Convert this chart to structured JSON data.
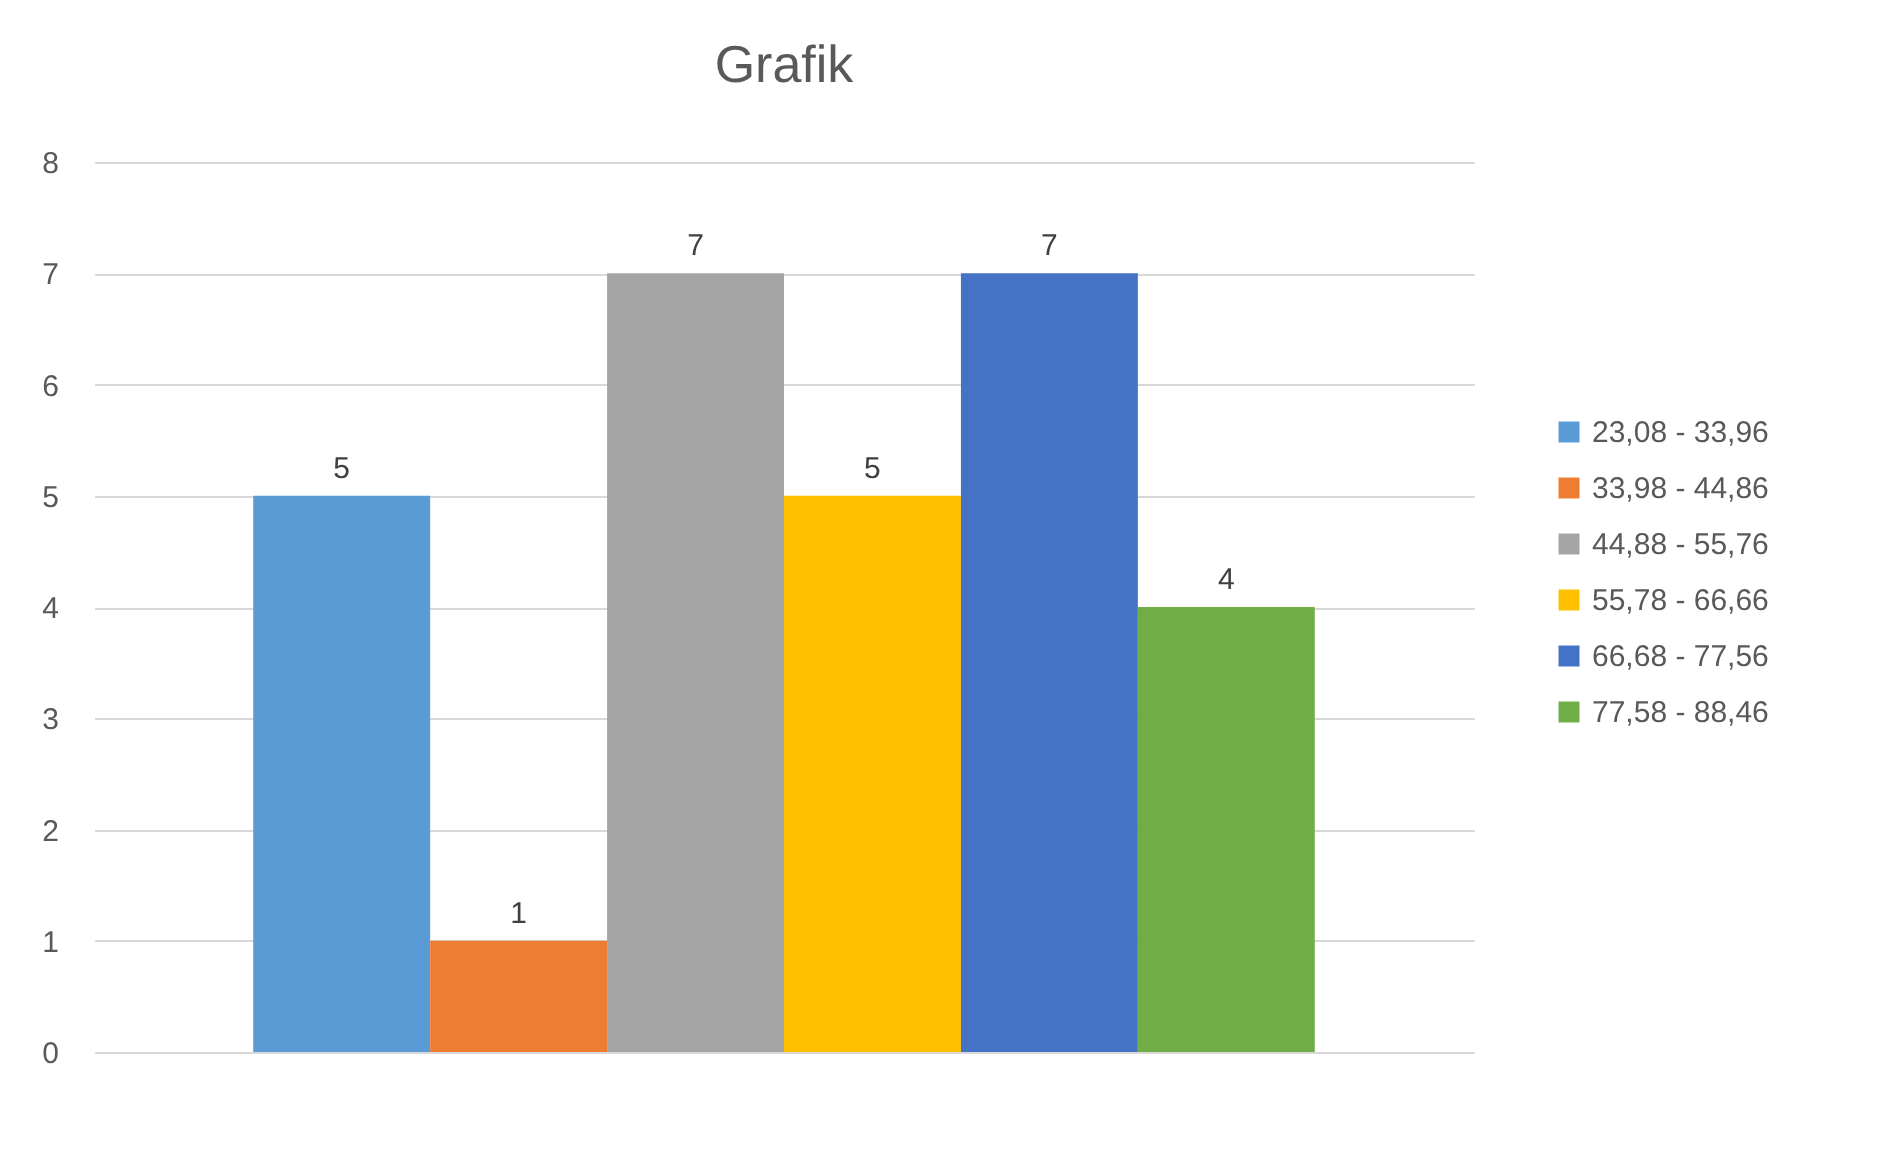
{
  "chart_data": {
    "type": "bar",
    "title": "Grafik",
    "categories": [
      null
    ],
    "series": [
      {
        "name": "23,08 - 33,96",
        "color": "#5b9bd5",
        "values": [
          5
        ]
      },
      {
        "name": "33,98 - 44,86",
        "color": "#ed7d31",
        "values": [
          1
        ]
      },
      {
        "name": "44,88 - 55,76",
        "color": "#a5a5a5",
        "values": [
          7
        ]
      },
      {
        "name": "55,78 - 66,66",
        "color": "#ffc000",
        "values": [
          5
        ]
      },
      {
        "name": "66,68 - 77,56",
        "color": "#4472c4",
        "values": [
          7
        ]
      },
      {
        "name": "77,58 - 88,46",
        "color": "#70ad47",
        "values": [
          4
        ]
      }
    ],
    "ylim": [
      0,
      8
    ],
    "yticks": [
      0,
      1,
      2,
      3,
      4,
      5,
      6,
      7,
      8
    ],
    "grid": "y",
    "legend": "right",
    "data_labels": true
  }
}
